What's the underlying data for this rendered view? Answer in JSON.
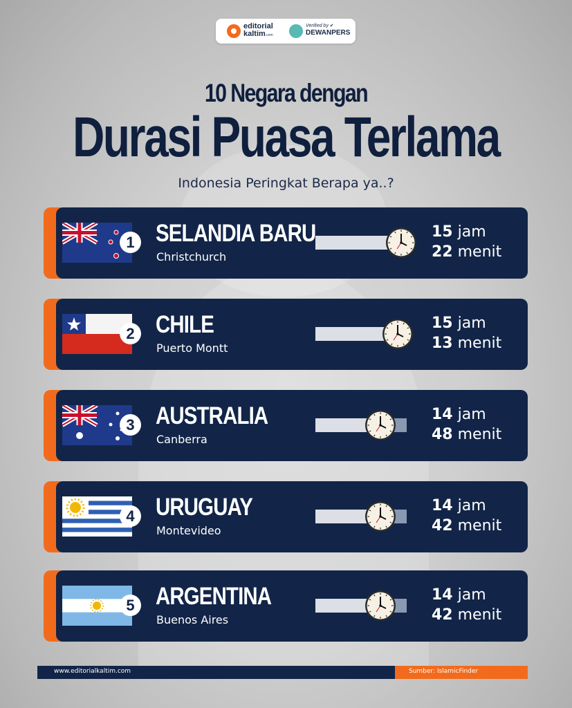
{
  "brand": {
    "name_line1": "editorial",
    "name_line2": "kaltim",
    "name_suffix": ".com",
    "verified_line1": "Verified by",
    "verified_line2": "DEWANPERS"
  },
  "title_line1": "10 Negara dengan",
  "title_line2": "Durasi Puasa Terlama",
  "subtitle": "Indonesia Peringkat Berapa ya..?",
  "rows": [
    {
      "rank": "1",
      "country": "SELANDIA BARU",
      "city": "Christchurch",
      "hours": "15",
      "hours_unit": "jam",
      "minutes": "22",
      "minutes_unit": "menit",
      "flag_icon": "new-zealand-flag-icon",
      "level": 0.94
    },
    {
      "rank": "2",
      "country": "CHILE",
      "city": "Puerto Montt",
      "hours": "15",
      "hours_unit": "jam",
      "minutes": "13",
      "minutes_unit": "menit",
      "flag_icon": "chile-flag-icon",
      "level": 0.9
    },
    {
      "rank": "3",
      "country": "AUSTRALIA",
      "city": "Canberra",
      "hours": "14",
      "hours_unit": "jam",
      "minutes": "48",
      "minutes_unit": "menit",
      "flag_icon": "australia-flag-icon",
      "level": 0.71
    },
    {
      "rank": "4",
      "country": "URUGUAY",
      "city": "Montevideo",
      "hours": "14",
      "hours_unit": "jam",
      "minutes": "42",
      "minutes_unit": "menit",
      "flag_icon": "uruguay-flag-icon",
      "level": 0.71
    },
    {
      "rank": "5",
      "country": "ARGENTINA",
      "city": "Buenos Aires",
      "hours": "14",
      "hours_unit": "jam",
      "minutes": "42",
      "minutes_unit": "menit",
      "flag_icon": "argentina-flag-icon",
      "level": 0.71
    }
  ],
  "footer": {
    "website": "www.editorialkaltim.com",
    "source": "Sumber: IslamicFinder"
  },
  "colors": {
    "navy": "#122548",
    "orange": "#f26b1d",
    "bar_track": "#dcdfe5",
    "bar_fill": "#8a99b2"
  }
}
